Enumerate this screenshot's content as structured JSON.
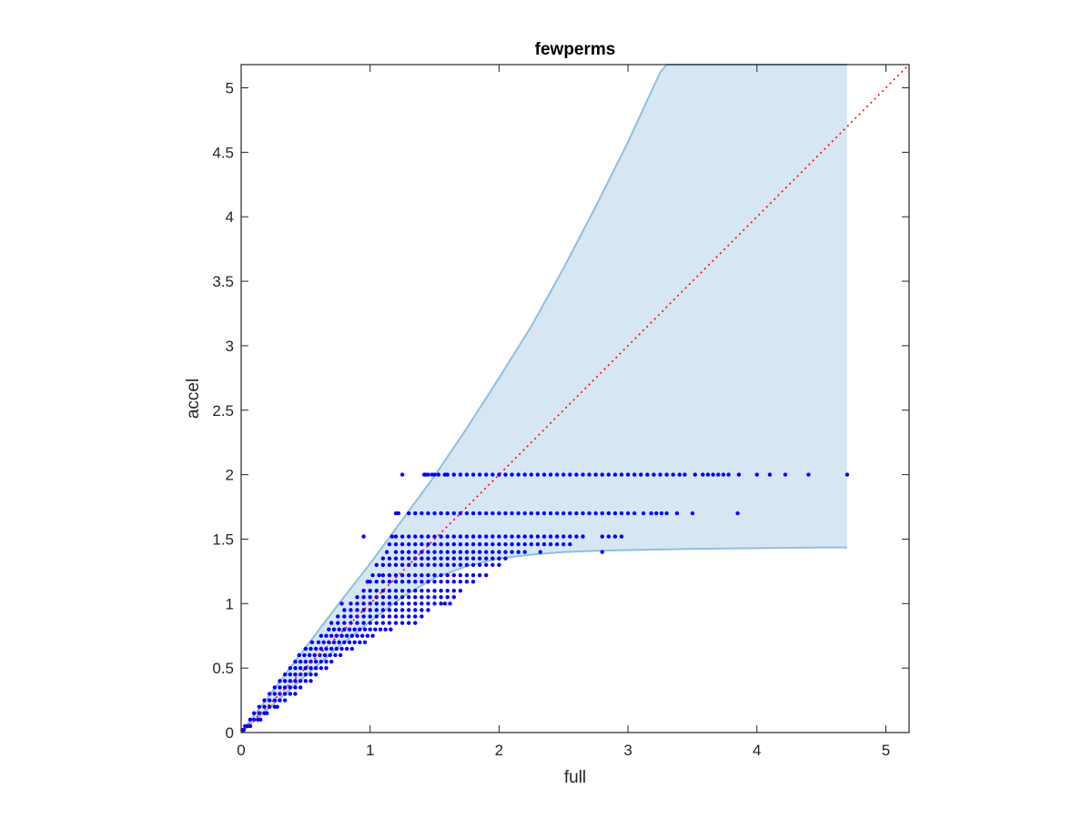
{
  "chart_data": {
    "type": "scatter",
    "title": "fewperms",
    "xlabel": "full",
    "ylabel": "accel",
    "xlim": [
      0,
      5.18
    ],
    "ylim": [
      0,
      5.18
    ],
    "xticks": [
      0,
      1,
      2,
      3,
      4,
      5
    ],
    "yticks": [
      0,
      0.5,
      1,
      1.5,
      2,
      2.5,
      3,
      3.5,
      4,
      4.5,
      5
    ],
    "xtick_labels": [
      "0",
      "1",
      "2",
      "3",
      "4",
      "5"
    ],
    "ytick_labels": [
      "0",
      "0.5",
      "1",
      "1.5",
      "2",
      "2.5",
      "3",
      "3.5",
      "4",
      "4.5",
      "5"
    ],
    "grid": false,
    "box": true,
    "colors": {
      "points": "#0000ff",
      "band_fill": "#d6e7f3",
      "band_edge": "#8fbfe0",
      "identity_line": "#ff0000",
      "axes": "#262626"
    },
    "band": {
      "x": [
        0,
        0.25,
        0.5,
        0.75,
        1.0,
        1.25,
        1.5,
        1.75,
        2.0,
        2.25,
        2.5,
        2.75,
        3.0,
        3.25,
        3.3,
        3.5,
        4.0,
        4.5,
        4.7
      ],
      "upper": [
        0,
        0.33,
        0.66,
        0.99,
        1.31,
        1.65,
        1.99,
        2.36,
        2.75,
        3.15,
        3.6,
        4.08,
        4.58,
        5.12,
        5.18,
        5.18,
        5.18,
        5.18,
        5.18
      ],
      "lower": [
        0,
        0.22,
        0.44,
        0.66,
        0.86,
        1.05,
        1.2,
        1.29,
        1.35,
        1.38,
        1.4,
        1.41,
        1.415,
        1.42,
        1.42,
        1.425,
        1.43,
        1.435,
        1.435
      ]
    },
    "identity_line": {
      "x": [
        0,
        5.18
      ],
      "y": [
        0,
        5.18
      ],
      "style": "dotted"
    },
    "series": [
      {
        "values": [
          {
            "y": 2.0,
            "x": [
              1.25,
              1.42,
              1.43,
              1.45,
              1.48,
              1.5,
              1.53,
              1.58,
              1.6,
              1.65,
              1.7,
              1.75,
              1.8,
              1.85,
              1.9,
              1.95,
              2.0,
              2.05,
              2.1,
              2.15,
              2.2,
              2.25,
              2.3,
              2.35,
              2.4,
              2.45,
              2.5,
              2.55,
              2.6,
              2.65,
              2.7,
              2.75,
              2.8,
              2.85,
              2.9,
              2.95,
              3.0,
              3.05,
              3.1,
              3.15,
              3.2,
              3.25,
              3.3,
              3.35,
              3.4,
              3.44,
              3.52,
              3.58,
              3.62,
              3.66,
              3.7,
              3.74,
              3.78,
              3.86,
              4.0,
              4.1,
              4.22,
              4.4,
              4.7
            ]
          },
          {
            "y": 1.7,
            "x": [
              1.2,
              1.22,
              1.3,
              1.35,
              1.4,
              1.45,
              1.5,
              1.55,
              1.6,
              1.65,
              1.7,
              1.75,
              1.8,
              1.85,
              1.9,
              1.95,
              2.0,
              2.05,
              2.1,
              2.15,
              2.2,
              2.25,
              2.3,
              2.35,
              2.4,
              2.45,
              2.5,
              2.55,
              2.6,
              2.65,
              2.7,
              2.75,
              2.8,
              2.85,
              2.9,
              2.95,
              3.0,
              3.05,
              3.12,
              3.18,
              3.22,
              3.26,
              3.3,
              3.38,
              3.5,
              3.85
            ]
          },
          {
            "y": 1.52,
            "x": [
              0.95,
              1.17,
              1.2,
              1.25,
              1.3,
              1.35,
              1.4,
              1.45,
              1.5,
              1.55,
              1.6,
              1.65,
              1.7,
              1.75,
              1.8,
              1.85,
              1.9,
              1.95,
              2.0,
              2.05,
              2.1,
              2.15,
              2.2,
              2.25,
              2.3,
              2.35,
              2.4,
              2.45,
              2.5,
              2.55,
              2.6,
              2.65,
              2.8,
              2.85,
              2.9,
              2.95
            ]
          },
          {
            "y": 1.46,
            "x": [
              1.15,
              1.2,
              1.25,
              1.3,
              1.35,
              1.4,
              1.45,
              1.5,
              1.55,
              1.6,
              1.65,
              1.7,
              1.75,
              1.8,
              1.85,
              1.9,
              1.95,
              2.0,
              2.05,
              2.1,
              2.15,
              2.2,
              2.25,
              2.3,
              2.35,
              2.4,
              2.45,
              2.5,
              2.55
            ]
          },
          {
            "y": 1.4,
            "x": [
              1.13,
              1.2,
              1.25,
              1.3,
              1.35,
              1.4,
              1.45,
              1.5,
              1.55,
              1.6,
              1.65,
              1.7,
              1.75,
              1.8,
              1.85,
              1.9,
              1.95,
              2.0,
              2.05,
              2.1,
              2.15,
              2.2,
              2.32,
              2.8
            ]
          },
          {
            "y": 1.35,
            "x": [
              1.1,
              1.15,
              1.2,
              1.25,
              1.3,
              1.35,
              1.4,
              1.45,
              1.5,
              1.55,
              1.6,
              1.65,
              1.7,
              1.75,
              1.8,
              1.85,
              1.9,
              1.95,
              2.0,
              2.05
            ]
          },
          {
            "y": 1.3,
            "x": [
              1.05,
              1.1,
              1.15,
              1.2,
              1.25,
              1.3,
              1.35,
              1.4,
              1.45,
              1.5,
              1.55,
              1.6,
              1.65,
              1.7,
              1.75,
              1.8,
              1.85,
              1.9,
              1.95,
              2.0
            ]
          },
          {
            "y": 1.22,
            "x": [
              1.02,
              1.07,
              1.1,
              1.15,
              1.2,
              1.25,
              1.3,
              1.35,
              1.4,
              1.45,
              1.5,
              1.55,
              1.6,
              1.65,
              1.7,
              1.75,
              1.8,
              1.85,
              1.9
            ]
          },
          {
            "y": 1.17,
            "x": [
              0.98,
              1.0,
              1.05,
              1.1,
              1.15,
              1.2,
              1.25,
              1.3,
              1.35,
              1.4,
              1.45,
              1.5,
              1.55,
              1.6,
              1.65,
              1.7,
              1.75,
              1.8
            ]
          },
          {
            "y": 1.1,
            "x": [
              0.95,
              1.0,
              1.05,
              1.1,
              1.15,
              1.2,
              1.25,
              1.3,
              1.35,
              1.4,
              1.45,
              1.5,
              1.55,
              1.6,
              1.65,
              1.7
            ]
          },
          {
            "y": 1.05,
            "x": [
              0.9,
              0.95,
              1.0,
              1.05,
              1.1,
              1.15,
              1.2,
              1.25,
              1.3,
              1.35,
              1.4,
              1.45,
              1.5,
              1.55,
              1.6,
              1.65
            ]
          },
          {
            "y": 1.0,
            "x": [
              0.78,
              0.85,
              0.9,
              0.95,
              1.0,
              1.05,
              1.1,
              1.15,
              1.2,
              1.25,
              1.3,
              1.35,
              1.4,
              1.45,
              1.5,
              1.55,
              1.58,
              1.62
            ]
          },
          {
            "y": 0.95,
            "x": [
              0.8,
              0.85,
              0.9,
              0.95,
              1.0,
              1.05,
              1.1,
              1.15,
              1.2,
              1.25,
              1.3,
              1.35,
              1.4,
              1.45
            ]
          },
          {
            "y": 0.9,
            "x": [
              0.75,
              0.8,
              0.85,
              0.9,
              0.95,
              1.0,
              1.05,
              1.1,
              1.15,
              1.2,
              1.25,
              1.3,
              1.35,
              1.4
            ]
          },
          {
            "y": 0.85,
            "x": [
              0.7,
              0.75,
              0.8,
              0.85,
              0.9,
              0.95,
              1.0,
              1.05,
              1.1,
              1.15,
              1.2,
              1.25,
              1.3,
              1.35
            ]
          },
          {
            "y": 0.8,
            "x": [
              0.68,
              0.72,
              0.76,
              0.8,
              0.84,
              0.88,
              0.92,
              0.96,
              1.0,
              1.04,
              1.08,
              1.12,
              1.16
            ]
          },
          {
            "y": 0.75,
            "x": [
              0.62,
              0.66,
              0.7,
              0.74,
              0.78,
              0.82,
              0.86,
              0.9,
              0.94,
              0.98,
              1.02
            ]
          },
          {
            "y": 0.7,
            "x": [
              0.55,
              0.6,
              0.64,
              0.68,
              0.72,
              0.76,
              0.8,
              0.84,
              0.88,
              0.92,
              0.96
            ]
          },
          {
            "y": 0.65,
            "x": [
              0.5,
              0.54,
              0.58,
              0.62,
              0.66,
              0.7,
              0.74,
              0.78,
              0.82,
              0.86
            ]
          },
          {
            "y": 0.6,
            "x": [
              0.45,
              0.49,
              0.53,
              0.57,
              0.61,
              0.65,
              0.69,
              0.73,
              0.77
            ]
          },
          {
            "y": 0.55,
            "x": [
              0.42,
              0.46,
              0.5,
              0.54,
              0.58,
              0.62,
              0.66,
              0.7
            ]
          },
          {
            "y": 0.5,
            "x": [
              0.38,
              0.42,
              0.46,
              0.5,
              0.54,
              0.58,
              0.62,
              0.66
            ]
          },
          {
            "y": 0.45,
            "x": [
              0.34,
              0.38,
              0.42,
              0.46,
              0.5,
              0.54,
              0.58
            ]
          },
          {
            "y": 0.4,
            "x": [
              0.3,
              0.34,
              0.38,
              0.42,
              0.46,
              0.5,
              0.54
            ]
          },
          {
            "y": 0.35,
            "x": [
              0.26,
              0.3,
              0.34,
              0.38,
              0.42,
              0.46
            ]
          },
          {
            "y": 0.3,
            "x": [
              0.22,
              0.26,
              0.3,
              0.34,
              0.38,
              0.42
            ]
          },
          {
            "y": 0.25,
            "x": [
              0.18,
              0.22,
              0.26,
              0.3,
              0.34
            ]
          },
          {
            "y": 0.2,
            "x": [
              0.14,
              0.18,
              0.22,
              0.26,
              0.28
            ]
          },
          {
            "y": 0.15,
            "x": [
              0.1,
              0.14,
              0.18,
              0.2
            ]
          },
          {
            "y": 0.1,
            "x": [
              0.07,
              0.1,
              0.13,
              0.15
            ]
          },
          {
            "y": 0.05,
            "x": [
              0.03,
              0.05,
              0.07
            ]
          },
          {
            "y": 0.02,
            "x": [
              0.01,
              0.02
            ]
          }
        ]
      }
    ]
  }
}
